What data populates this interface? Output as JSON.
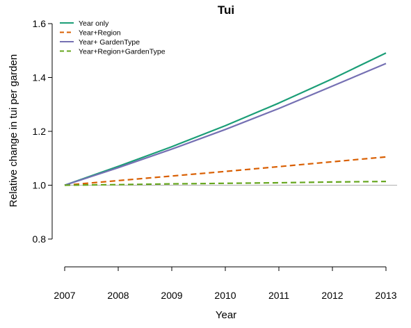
{
  "chart_data": {
    "type": "line",
    "title": "Tui",
    "xlabel": "Year",
    "ylabel": "Relative change in tui per garden",
    "x": [
      2007,
      2008,
      2009,
      2010,
      2011,
      2012,
      2013
    ],
    "xlim": [
      2007,
      2013
    ],
    "ylim": [
      0.8,
      1.6
    ],
    "yticks": [
      0.8,
      1.0,
      1.2,
      1.4,
      1.6
    ],
    "ytick_labels": [
      "0.8",
      "1.0",
      "1.2",
      "1.4",
      "1.6"
    ],
    "xtick_labels": [
      "2007",
      "2008",
      "2009",
      "2010",
      "2011",
      "2012",
      "2013"
    ],
    "reference_line": 1.0,
    "grid": false,
    "legend_position": "top-left",
    "series": [
      {
        "name": "Year only",
        "values": [
          1.0,
          1.07,
          1.143,
          1.221,
          1.305,
          1.395,
          1.491
        ],
        "color": "#1b9e77",
        "style": "solid"
      },
      {
        "name": "Year+Region",
        "values": [
          1.0,
          1.017,
          1.034,
          1.051,
          1.069,
          1.087,
          1.105
        ],
        "color": "#d95f02",
        "style": "dashed"
      },
      {
        "name": "Year+ GardenType",
        "values": [
          1.0,
          1.065,
          1.134,
          1.207,
          1.285,
          1.368,
          1.452
        ],
        "color": "#7570b3",
        "style": "solid"
      },
      {
        "name": "Year+Region+GardenType",
        "values": [
          1.0,
          1.002,
          1.005,
          1.007,
          1.009,
          1.012,
          1.014
        ],
        "color": "#66a61e",
        "style": "dashed"
      }
    ]
  }
}
